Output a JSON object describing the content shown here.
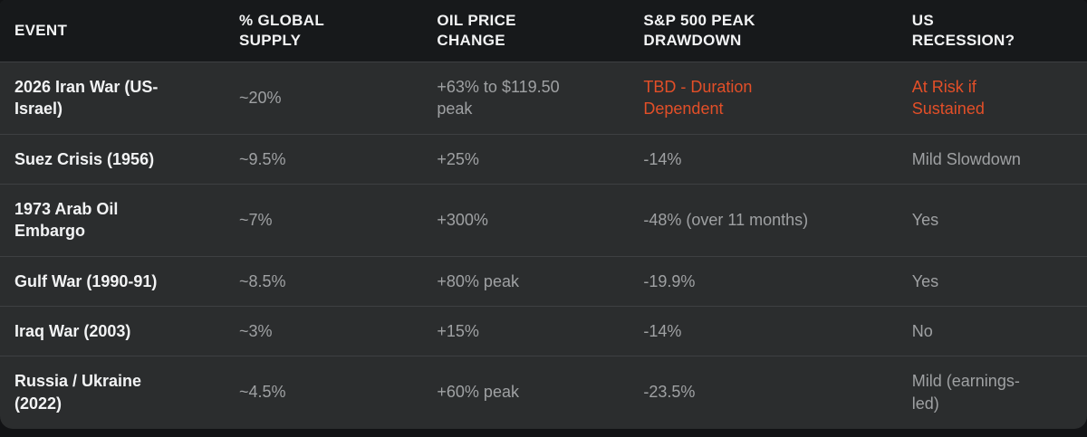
{
  "colors": {
    "page_background": "#121315",
    "header_background": "#17191b",
    "row_background": "#2b2d2e",
    "divider": "#3e4042",
    "text_primary": "#f2f3f4",
    "text_secondary": "#9fa1a3",
    "accent_orange": "#e34f28"
  },
  "chart_data": {
    "type": "table",
    "title": "Oil shock events vs market impact comparison",
    "columns": [
      "EVENT",
      "% GLOBAL\nSUPPLY",
      "OIL PRICE\nCHANGE",
      "S&P 500 PEAK\nDRAWDOWN",
      "US\nRECESSION?"
    ],
    "rows": [
      [
        "2026 Iran War (US-\nIsrael)",
        "~20%",
        "+63% to $119.50\npeak",
        "TBD - Duration\nDependent",
        "At Risk if\nSustained"
      ],
      [
        "Suez Crisis (1956)",
        "~9.5%",
        "+25%",
        "-14%",
        "Mild Slowdown"
      ],
      [
        "1973 Arab Oil\nEmbargo",
        "~7%",
        "+300%",
        "-48% (over 11 months)",
        "Yes"
      ],
      [
        "Gulf War (1990-91)",
        "~8.5%",
        "+80% peak",
        "-19.9%",
        "Yes"
      ],
      [
        "Iraq War (2003)",
        "~3%",
        "+15%",
        "-14%",
        "No"
      ],
      [
        "Russia / Ukraine\n(2022)",
        "~4.5%",
        "+60% peak",
        "-23.5%",
        "Mild (earnings-\nled)"
      ]
    ],
    "highlight": {
      "row": 0,
      "cols": [
        3,
        4
      ],
      "color": "#e34f28",
      "meaning": "pending / at-risk values for hypothetical 2026 event"
    },
    "layout": {
      "theme": "dark",
      "grid": "horizontal-dividers-only",
      "header_case": "uppercase"
    }
  }
}
